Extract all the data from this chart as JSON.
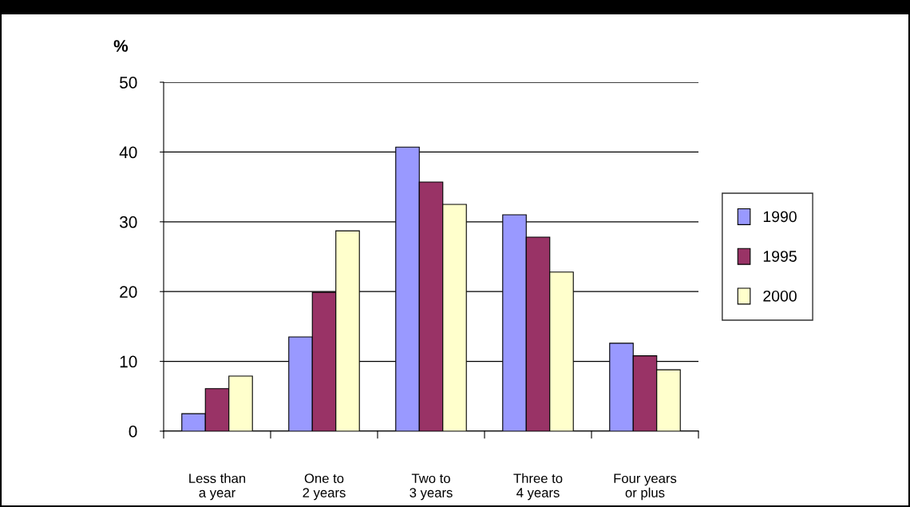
{
  "chart_data": {
    "type": "bar",
    "ylabel": "%",
    "categories": [
      "Less than\na year",
      "One to\n2 years",
      "Two to\n3 years",
      "Three to\n4 years",
      "Four years\nor plus"
    ],
    "series": [
      {
        "name": "1990",
        "color": "#9999ff",
        "values": [
          2.5,
          13.5,
          40.7,
          31,
          12.6
        ]
      },
      {
        "name": "1995",
        "color": "#993366",
        "values": [
          6.1,
          19.9,
          35.7,
          27.8,
          10.8
        ]
      },
      {
        "name": "2000",
        "color": "#ffffcc",
        "values": [
          7.9,
          28.7,
          32.5,
          22.8,
          8.8
        ]
      }
    ],
    "ylim": [
      0,
      50
    ],
    "yticks": [
      0,
      10,
      20,
      30,
      40,
      50
    ],
    "grid": "y",
    "legend": "right"
  }
}
